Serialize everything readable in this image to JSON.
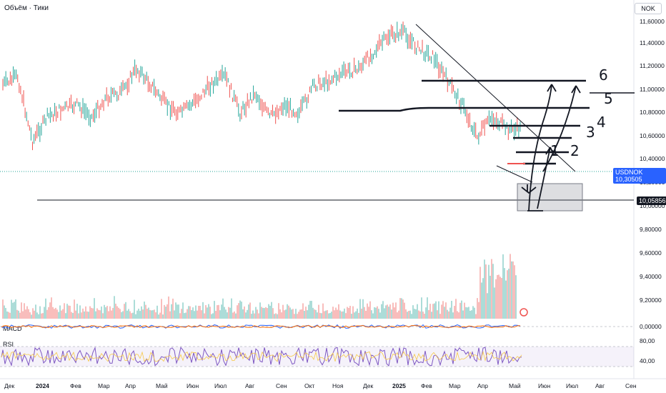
{
  "header": {
    "label": "Объём · Тики",
    "currency": "NOK"
  },
  "colors": {
    "up": "#26a69a",
    "down": "#ef5350",
    "accent": "#2962ff",
    "ink": "#131722",
    "rsi": "#7e57c2",
    "macd": "#2962ff",
    "signal": "#ff6d00"
  },
  "chart_data": {
    "type": "line",
    "symbol": "USDNOK",
    "last_price": "10,30505",
    "level_label": "10,05856",
    "y_ticks": [
      "11,60000",
      "11,40000",
      "11,20000",
      "11,00000",
      "10,80000",
      "10,60000",
      "10,40000",
      "10,20000",
      "10,00000",
      "9,80000",
      "9,60000",
      "9,40000",
      "9,20000",
      "0,00000",
      "80,00",
      "40,00"
    ],
    "x_ticks": [
      "Дек",
      "2024",
      "Фев",
      "Мар",
      "Апр",
      "Май",
      "Июн",
      "Июл",
      "Авг",
      "Сен",
      "Окт",
      "Ноя",
      "Дек",
      "2025",
      "Фев",
      "Мар",
      "Апр",
      "Май",
      "Июн",
      "Июл",
      "Авг",
      "Сен"
    ],
    "ylim": [
      9.0,
      11.65
    ],
    "x": [
      "2023-12",
      "2023-12",
      "2024-01",
      "2024-01",
      "2024-02",
      "2024-02",
      "2024-03",
      "2024-03",
      "2024-04",
      "2024-04",
      "2024-05",
      "2024-05",
      "2024-06",
      "2024-06",
      "2024-07",
      "2024-07",
      "2024-08",
      "2024-08",
      "2024-09",
      "2024-09",
      "2024-10",
      "2024-10",
      "2024-11",
      "2024-11",
      "2024-12",
      "2024-12",
      "2025-01",
      "2025-01",
      "2025-02",
      "2025-02",
      "2025-03",
      "2025-03",
      "2025-04",
      "2025-04",
      "2025-05",
      "2025-05"
    ],
    "values": [
      10.85,
      10.95,
      10.15,
      10.45,
      10.55,
      10.6,
      10.45,
      10.7,
      10.75,
      11.05,
      10.85,
      10.6,
      10.5,
      10.65,
      10.85,
      10.95,
      10.5,
      10.75,
      10.45,
      10.6,
      10.5,
      10.85,
      10.9,
      11.0,
      11.05,
      11.25,
      11.45,
      11.5,
      11.3,
      11.2,
      10.9,
      10.6,
      10.2,
      10.45,
      10.3,
      10.3
    ],
    "annotations": [
      "1",
      "2",
      "3",
      "4",
      "5",
      "6"
    ],
    "panes": [
      "MACD",
      "RSI"
    ]
  }
}
